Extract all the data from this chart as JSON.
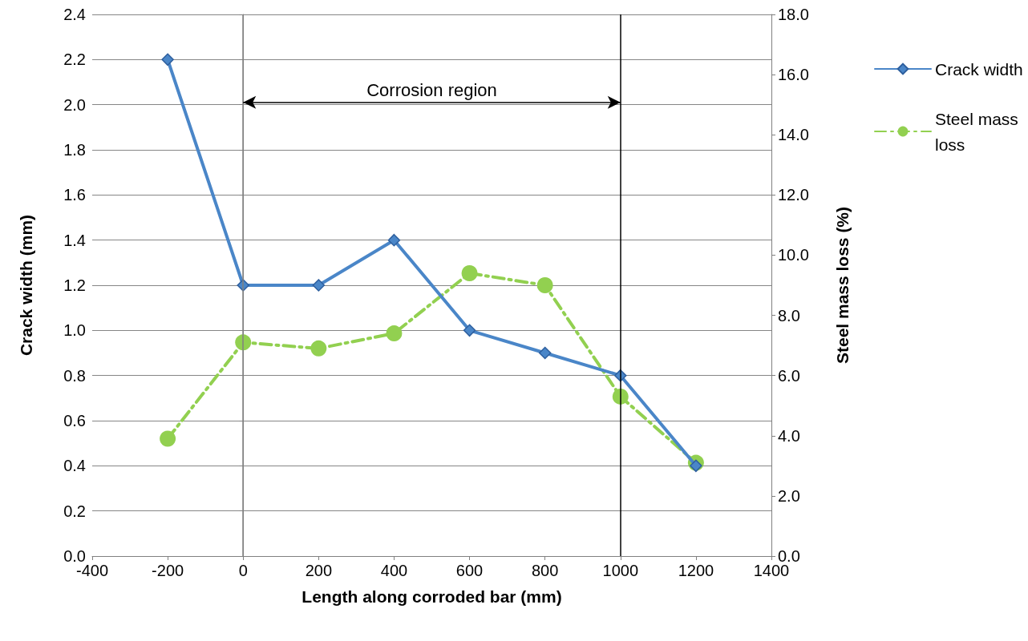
{
  "chart_data": {
    "type": "line",
    "xlabel": "Length along corroded bar (mm)",
    "ylabel": "Crack width (mm)",
    "y2label": "Steel mass loss (%)",
    "x": [
      -200,
      0,
      200,
      400,
      600,
      800,
      1000,
      1200
    ],
    "series": [
      {
        "name": "Crack width",
        "color": "#4a86c8",
        "values": [
          2.2,
          1.2,
          1.2,
          1.4,
          1.0,
          0.9,
          0.8,
          0.4
        ],
        "marker": "diamond",
        "line_style": "solid"
      },
      {
        "name": "Steel mass loss",
        "color": "#92d050",
        "values": [
          3.9,
          7.1,
          6.9,
          7.4,
          9.4,
          9.0,
          5.3,
          3.1
        ],
        "marker": "circle",
        "line_style": "dashed",
        "axis": "y2"
      }
    ],
    "xlim": [
      -400,
      1400
    ],
    "xticks": [
      -400,
      -200,
      0,
      200,
      400,
      600,
      800,
      1000,
      1200,
      1400
    ],
    "ylim": [
      0,
      2.4
    ],
    "yticks": [
      {
        "value": 0,
        "label": "0.0"
      },
      {
        "value": 0.2,
        "label": "0.2"
      },
      {
        "value": 0.4,
        "label": "0.4"
      },
      {
        "value": 0.6,
        "label": "0.6"
      },
      {
        "value": 0.8,
        "label": "0.8"
      },
      {
        "value": 1.0,
        "label": "1.0"
      },
      {
        "value": 1.2,
        "label": "1.2"
      },
      {
        "value": 1.4,
        "label": "1.4"
      },
      {
        "value": 1.6,
        "label": "1.6"
      },
      {
        "value": 1.8,
        "label": "1.8"
      },
      {
        "value": 2.0,
        "label": "2.0"
      },
      {
        "value": 2.2,
        "label": "2.2"
      },
      {
        "value": 2.4,
        "label": "2.4"
      }
    ],
    "y2lim": [
      0,
      18
    ],
    "y2ticks": [
      {
        "value": 0,
        "label": "0.0"
      },
      {
        "value": 2,
        "label": "2.0"
      },
      {
        "value": 4,
        "label": "4.0"
      },
      {
        "value": 6,
        "label": "6.0"
      },
      {
        "value": 8,
        "label": "8.0"
      },
      {
        "value": 10,
        "label": "10.0"
      },
      {
        "value": 12,
        "label": "12.0"
      },
      {
        "value": 14,
        "label": "14.0"
      },
      {
        "value": 16,
        "label": "16.0"
      },
      {
        "value": 18,
        "label": "18.0"
      }
    ],
    "ref_lines": [
      {
        "axis": "x",
        "value": 0,
        "color": "#808080"
      },
      {
        "axis": "x",
        "value": 1000,
        "color": "#000000"
      }
    ],
    "annotations": [
      "Corrosion region"
    ],
    "grid": "y",
    "legend": "right"
  }
}
